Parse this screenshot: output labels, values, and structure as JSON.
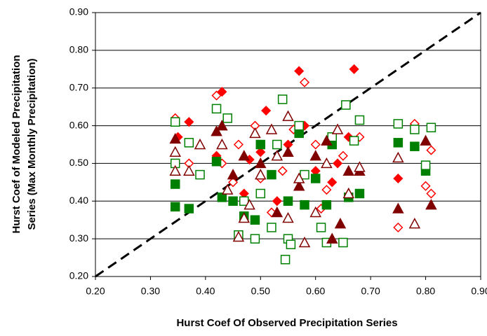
{
  "chart_data": {
    "type": "scatter",
    "xlabel": "Hurst Coef Of Observed Precipitation Series",
    "ylabel": [
      "Hurst Coef of Modeled Precipitation",
      "Series (Max Monthly Precipitation)"
    ],
    "xlim": [
      0.2,
      0.9
    ],
    "ylim": [
      0.2,
      0.9
    ],
    "xticks": [
      {
        "value": 0.2,
        "label": "0.20"
      },
      {
        "value": 0.3,
        "label": "0.30"
      },
      {
        "value": 0.4,
        "label": "0.40"
      },
      {
        "value": 0.5,
        "label": "0.50"
      },
      {
        "value": 0.6,
        "label": "0.60"
      },
      {
        "value": 0.7,
        "label": "0.70"
      },
      {
        "value": 0.8,
        "label": "0.80"
      },
      {
        "value": 0.9,
        "label": "0.90"
      }
    ],
    "yticks": [
      {
        "value": 0.2,
        "label": "0.20"
      },
      {
        "value": 0.3,
        "label": "0.30"
      },
      {
        "value": 0.4,
        "label": "0.40"
      },
      {
        "value": 0.5,
        "label": "0.50"
      },
      {
        "value": 0.6,
        "label": "0.60"
      },
      {
        "value": 0.7,
        "label": "0.70"
      },
      {
        "value": 0.8,
        "label": "0.80"
      },
      {
        "value": 0.9,
        "label": "0.90"
      }
    ],
    "grid": true,
    "series": [
      {
        "color": "#ff0000",
        "marker": "diamond",
        "filled": true,
        "x": [
          0.43,
          0.57,
          0.67,
          0.37,
          0.51,
          0.75,
          0.35,
          0.42,
          0.47,
          0.5,
          0.55,
          0.6,
          0.63,
          0.66,
          0.48,
          0.58,
          0.53,
          0.64
        ],
        "values": [
          0.69,
          0.745,
          0.75,
          0.61,
          0.64,
          0.46,
          0.57,
          0.52,
          0.42,
          0.53,
          0.55,
          0.48,
          0.45,
          0.57,
          0.51,
          0.6,
          0.4,
          0.5
        ]
      },
      {
        "color": "#ff0000",
        "marker": "diamond",
        "filled": false,
        "x": [
          0.58,
          0.42,
          0.345,
          0.78,
          0.81,
          0.75,
          0.8,
          0.81,
          0.37,
          0.45,
          0.49,
          0.52,
          0.56,
          0.6,
          0.62,
          0.65,
          0.68,
          0.46,
          0.54,
          0.61,
          0.43,
          0.5
        ],
        "values": [
          0.715,
          0.68,
          0.62,
          0.605,
          0.535,
          0.33,
          0.44,
          0.42,
          0.5,
          0.45,
          0.6,
          0.37,
          0.59,
          0.55,
          0.43,
          0.52,
          0.57,
          0.55,
          0.48,
          0.38,
          0.5,
          0.46
        ]
      },
      {
        "color": "#008000",
        "marker": "square",
        "filled": true,
        "x": [
          0.345,
          0.345,
          0.37,
          0.43,
          0.47,
          0.49,
          0.55,
          0.58,
          0.6,
          0.62,
          0.66,
          0.68,
          0.75,
          0.78,
          0.8,
          0.42,
          0.52,
          0.57,
          0.63,
          0.5,
          0.45
        ],
        "values": [
          0.445,
          0.385,
          0.38,
          0.41,
          0.36,
          0.35,
          0.4,
          0.39,
          0.46,
          0.39,
          0.41,
          0.42,
          0.555,
          0.545,
          0.48,
          0.505,
          0.47,
          0.58,
          0.55,
          0.55,
          0.4
        ]
      },
      {
        "color": "#008000",
        "marker": "square",
        "filled": false,
        "x": [
          0.345,
          0.42,
          0.54,
          0.655,
          0.68,
          0.75,
          0.78,
          0.81,
          0.8,
          0.345,
          0.37,
          0.39,
          0.44,
          0.46,
          0.49,
          0.52,
          0.545,
          0.55,
          0.555,
          0.61,
          0.62,
          0.65,
          0.47,
          0.5,
          0.57,
          0.63,
          0.67,
          0.58,
          0.53
        ],
        "values": [
          0.61,
          0.645,
          0.67,
          0.655,
          0.615,
          0.605,
          0.59,
          0.595,
          0.495,
          0.5,
          0.555,
          0.47,
          0.62,
          0.31,
          0.3,
          0.33,
          0.245,
          0.3,
          0.285,
          0.33,
          0.29,
          0.29,
          0.4,
          0.42,
          0.6,
          0.57,
          0.56,
          0.47,
          0.55
        ]
      },
      {
        "color": "#800000",
        "marker": "triangle",
        "filled": true,
        "x": [
          0.345,
          0.42,
          0.43,
          0.53,
          0.63,
          0.645,
          0.75,
          0.81,
          0.8,
          0.47,
          0.5,
          0.55,
          0.6,
          0.66,
          0.68,
          0.57,
          0.62,
          0.45
        ],
        "values": [
          0.565,
          0.585,
          0.6,
          0.37,
          0.3,
          0.34,
          0.38,
          0.39,
          0.56,
          0.52,
          0.5,
          0.53,
          0.52,
          0.48,
          0.48,
          0.44,
          0.56,
          0.47
        ]
      },
      {
        "color": "#800000",
        "marker": "triangle",
        "filled": false,
        "x": [
          0.345,
          0.345,
          0.37,
          0.39,
          0.43,
          0.46,
          0.47,
          0.55,
          0.58,
          0.6,
          0.64,
          0.55,
          0.75,
          0.78,
          0.68,
          0.52,
          0.49,
          0.44,
          0.57,
          0.62,
          0.66,
          0.5,
          0.53,
          0.48
        ],
        "values": [
          0.53,
          0.48,
          0.48,
          0.55,
          0.55,
          0.305,
          0.355,
          0.355,
          0.29,
          0.37,
          0.59,
          0.625,
          0.515,
          0.34,
          0.49,
          0.59,
          0.58,
          0.43,
          0.46,
          0.5,
          0.42,
          0.47,
          0.52,
          0.39
        ]
      }
    ]
  }
}
